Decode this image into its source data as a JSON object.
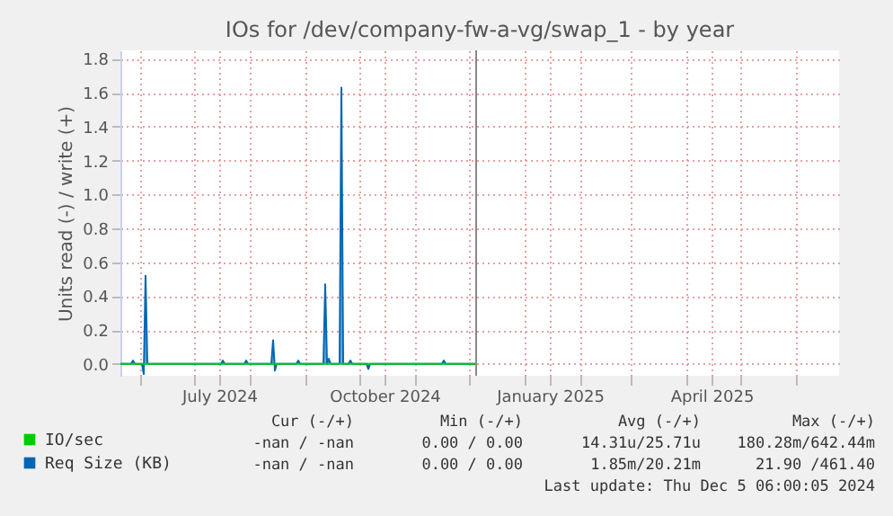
{
  "chart_data": {
    "type": "area",
    "title": "IOs for /dev/company-fw-a-vg/swap_1 - by year",
    "ylabel": "Units read (-) / write (+)",
    "xlim": [
      "2024-05-21",
      "2025-06-25"
    ],
    "xticks": [
      {
        "value": "2024-06-01",
        "label": null
      },
      {
        "value": "2024-07-01",
        "label": null
      },
      {
        "value": "2024-07-15",
        "label": "July 2024"
      },
      {
        "value": "2024-08-01",
        "label": null
      },
      {
        "value": "2024-09-01",
        "label": null
      },
      {
        "value": "2024-10-01",
        "label": null
      },
      {
        "value": "2024-10-15",
        "label": "October 2024"
      },
      {
        "value": "2024-11-01",
        "label": null
      },
      {
        "value": "2024-12-01",
        "label": null
      },
      {
        "value": "2025-01-01",
        "label": null
      },
      {
        "value": "2025-01-15",
        "label": "January 2025"
      },
      {
        "value": "2025-02-01",
        "label": null
      },
      {
        "value": "2025-03-01",
        "label": null
      },
      {
        "value": "2025-04-01",
        "label": null
      },
      {
        "value": "2025-04-15",
        "label": "April 2025"
      },
      {
        "value": "2025-05-01",
        "label": null
      },
      {
        "value": "2025-06-01",
        "label": null
      }
    ],
    "ylim": [
      -0.07,
      1.85
    ],
    "yticks": [
      {
        "value": 0,
        "label": "0.0"
      },
      {
        "value": 0.2,
        "label": "0.2"
      },
      {
        "value": 0.4,
        "label": "0.4"
      },
      {
        "value": 0.6,
        "label": "0.6"
      },
      {
        "value": 0.8,
        "label": "0.8"
      },
      {
        "value": 1.0,
        "label": "1.0"
      },
      {
        "value": 1.2,
        "label": "1.2"
      },
      {
        "value": 1.4,
        "label": "1.4"
      },
      {
        "value": 1.6,
        "label": "1.6"
      },
      {
        "value": 1.8,
        "label": "1.8"
      }
    ],
    "grid": true,
    "legend": "bottom",
    "ref_lines": [
      {
        "axis": "x",
        "value": "2024-12-05",
        "color": "#888888"
      }
    ],
    "series": [
      {
        "name": "IO/sec",
        "color": "#00cc00",
        "type": "line",
        "x": [
          "2024-05-21",
          "2024-12-05"
        ],
        "values": [
          0,
          0
        ]
      },
      {
        "name": "Req Size (KB)",
        "color": "#0066b3",
        "x": [
          "2024-05-21",
          "2024-05-27",
          "2024-05-28",
          "2024-05-29",
          "2024-06-02",
          "2024-06-03",
          "2024-06-04",
          "2024-06-05",
          "2024-07-16",
          "2024-07-17",
          "2024-07-18",
          "2024-07-29",
          "2024-07-30",
          "2024-07-31",
          "2024-08-13",
          "2024-08-14",
          "2024-08-15",
          "2024-08-16",
          "2024-08-27",
          "2024-08-28",
          "2024-08-29",
          "2024-09-11",
          "2024-09-12",
          "2024-09-13",
          "2024-09-14",
          "2024-09-15",
          "2024-09-20",
          "2024-09-21",
          "2024-09-22",
          "2024-09-25",
          "2024-09-26",
          "2024-09-27",
          "2024-10-05",
          "2024-10-06",
          "2024-10-07",
          "2024-11-16",
          "2024-11-17",
          "2024-11-18",
          "2024-12-05"
        ],
        "values": [
          0,
          0,
          0.02,
          0,
          0,
          -0.06,
          0.52,
          0,
          0,
          0.02,
          0,
          0,
          0.02,
          0,
          0,
          0.14,
          -0.04,
          0,
          0,
          0.02,
          0,
          0,
          0.47,
          0,
          0.03,
          0,
          0,
          1.63,
          0,
          0,
          0.02,
          0,
          0,
          -0.03,
          0,
          0,
          0.02,
          0,
          0
        ]
      }
    ],
    "annotations": [
      "Cur (-/+)",
      "Min (-/+)",
      "Avg (-/+)",
      "Max (-/+)",
      "-nan / -nan",
      "0.00 / 0.00",
      "14.31u/25.71u",
      "180.28m/642.44m",
      "-nan / -nan",
      "0.00 / 0.00",
      "1.85m/20.21m",
      "21.90 /461.40",
      "Last update: Thu Dec  5 06:00:05 2024"
    ]
  }
}
